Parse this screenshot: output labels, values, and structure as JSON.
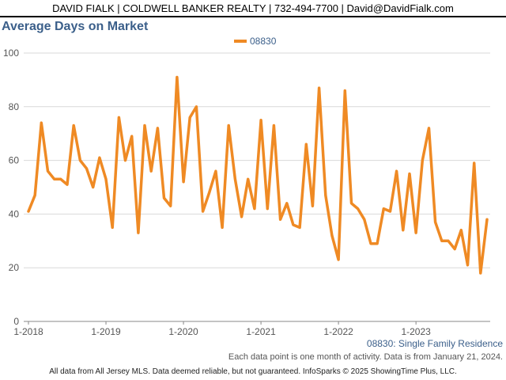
{
  "header": {
    "text": "DAVID FIALK | COLDWELL BANKER REALTY | 732-494-7700 | David@DavidFialk.com"
  },
  "footnotes": {
    "series_label": "08830: Single Family Residence",
    "note": "Each data point is one month of activity. Data is from January 21, 2024."
  },
  "footer": {
    "text": "All data from All Jersey MLS. Data deemed reliable, but not guaranteed. InfoSparks © 2025 ShowingTime Plus, LLC."
  },
  "colors": {
    "series": "#ef8a24",
    "title": "#3b5f8a",
    "grid": "#d9d9d9"
  },
  "chart_data": {
    "type": "line",
    "title": "Average Days on Market",
    "xlabel": "",
    "ylabel": "",
    "ylim": [
      0,
      100
    ],
    "yticks": [
      0,
      20,
      40,
      60,
      80,
      100
    ],
    "xtick_labels": [
      "1-2018",
      "1-2019",
      "1-2020",
      "1-2021",
      "1-2022",
      "1-2023"
    ],
    "legend": "top-center",
    "grid": true,
    "series": [
      {
        "name": "08830",
        "x": [
          "2018-01",
          "2018-02",
          "2018-03",
          "2018-04",
          "2018-05",
          "2018-06",
          "2018-07",
          "2018-08",
          "2018-09",
          "2018-10",
          "2018-11",
          "2018-12",
          "2019-01",
          "2019-02",
          "2019-03",
          "2019-04",
          "2019-05",
          "2019-06",
          "2019-07",
          "2019-08",
          "2019-09",
          "2019-10",
          "2019-11",
          "2019-12",
          "2020-01",
          "2020-02",
          "2020-03",
          "2020-04",
          "2020-05",
          "2020-06",
          "2020-07",
          "2020-08",
          "2020-09",
          "2020-10",
          "2020-11",
          "2020-12",
          "2021-01",
          "2021-02",
          "2021-03",
          "2021-04",
          "2021-05",
          "2021-06",
          "2021-07",
          "2021-08",
          "2021-09",
          "2021-10",
          "2021-11",
          "2021-12",
          "2022-01",
          "2022-02",
          "2022-03",
          "2022-04",
          "2022-05",
          "2022-06",
          "2022-07",
          "2022-08",
          "2022-09",
          "2022-10",
          "2022-11",
          "2022-12",
          "2023-01",
          "2023-02",
          "2023-03",
          "2023-04",
          "2023-05",
          "2023-06",
          "2023-07",
          "2023-08",
          "2023-09",
          "2023-10",
          "2023-11",
          "2023-12"
        ],
        "values": [
          41,
          47,
          74,
          56,
          53,
          53,
          51,
          73,
          60,
          57,
          50,
          61,
          53,
          35,
          76,
          60,
          69,
          33,
          73,
          56,
          72,
          46,
          43,
          91,
          52,
          76,
          80,
          41,
          48,
          56,
          35,
          73,
          53,
          39,
          53,
          42,
          75,
          42,
          73,
          38,
          44,
          36,
          35,
          66,
          43,
          87,
          47,
          32,
          23,
          86,
          44,
          42,
          38,
          29,
          29,
          42,
          41,
          56,
          34,
          55,
          33,
          60,
          72,
          37,
          30,
          30,
          27,
          34,
          21,
          59,
          18,
          38
        ]
      }
    ]
  }
}
